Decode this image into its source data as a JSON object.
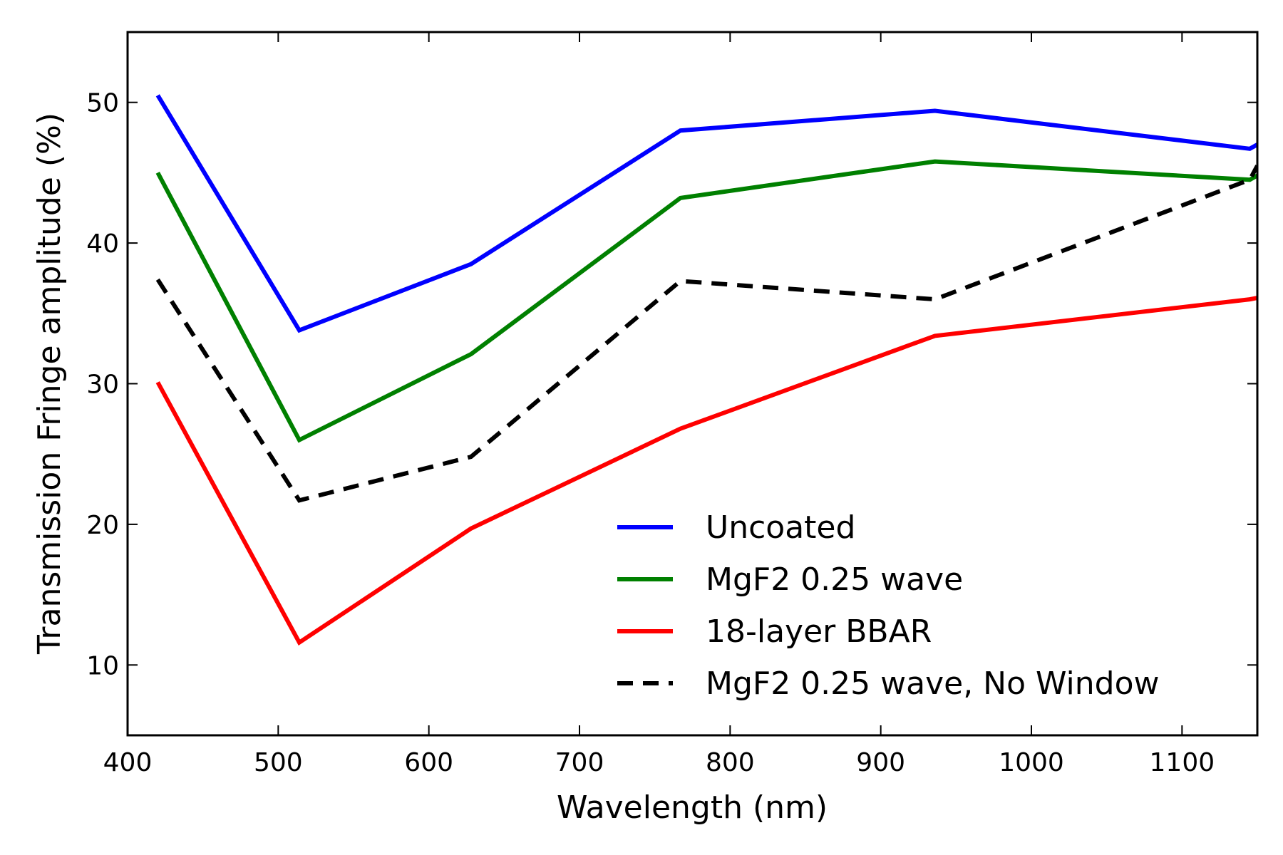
{
  "chart_data": {
    "type": "line",
    "title": "",
    "xlabel": "Wavelength (nm)",
    "ylabel": "Transmission Fringe amplitude (%)",
    "xlim": [
      400,
      1150
    ],
    "ylim": [
      5,
      55
    ],
    "xticks": [
      400,
      500,
      600,
      700,
      800,
      900,
      1000,
      1100
    ],
    "yticks": [
      10,
      20,
      30,
      40,
      50
    ],
    "grid": false,
    "legend_position": "lower-right",
    "x": [
      420,
      514,
      628,
      767,
      936,
      1145,
      1150
    ],
    "series": [
      {
        "name": "Uncoated",
        "color": "#0000ff",
        "dash": "solid",
        "values": [
          50.5,
          33.8,
          38.5,
          48.0,
          49.4,
          46.7,
          47.0
        ]
      },
      {
        "name": "MgF2 0.25 wave",
        "color": "#008000",
        "dash": "solid",
        "values": [
          45.0,
          26.0,
          32.1,
          43.2,
          45.8,
          44.5,
          44.8
        ]
      },
      {
        "name": "18-layer BBAR",
        "color": "#ff0000",
        "dash": "solid",
        "values": [
          30.1,
          11.6,
          19.7,
          26.8,
          33.4,
          36.0,
          36.1
        ]
      },
      {
        "name": "MgF2 0.25 wave, No Window",
        "color": "#000000",
        "dash": "dashed",
        "values": [
          37.4,
          21.7,
          24.8,
          37.3,
          36.0,
          44.5,
          45.5
        ]
      }
    ]
  }
}
